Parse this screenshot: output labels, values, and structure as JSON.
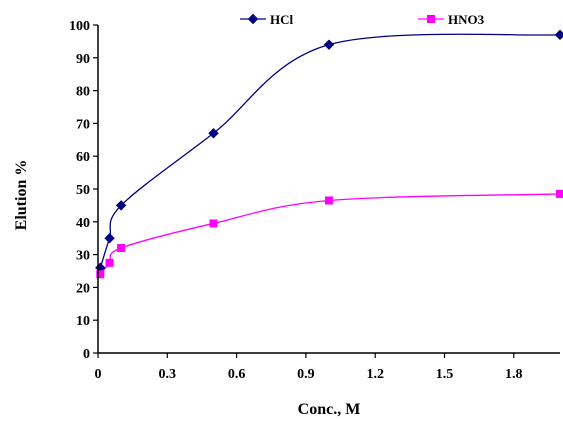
{
  "chart_data": {
    "type": "line",
    "title": "",
    "xlabel": "Conc., M",
    "ylabel": "Elution %",
    "xlim": [
      0,
      2.0
    ],
    "ylim": [
      0,
      100
    ],
    "x_ticks": [
      "0",
      "0.3",
      "0.6",
      "0.9",
      "1.2",
      "1.5",
      "1.8"
    ],
    "x_tick_values": [
      0,
      0.3,
      0.6,
      0.9,
      1.2,
      1.5,
      1.8
    ],
    "y_ticks": [
      "0",
      "10",
      "20",
      "30",
      "40",
      "50",
      "60",
      "70",
      "80",
      "90",
      "100"
    ],
    "y_tick_values": [
      0,
      10,
      20,
      30,
      40,
      50,
      60,
      70,
      80,
      90,
      100
    ],
    "grid": false,
    "smooth": true,
    "legend": "top",
    "series": [
      {
        "name": "HCl",
        "color": "#000080",
        "marker": "diamond",
        "x": [
          0.01,
          0.05,
          0.1,
          0.5,
          1.0,
          2.0
        ],
        "values": [
          26,
          35,
          45,
          67,
          94,
          97
        ]
      },
      {
        "name": "HNO3",
        "color": "#ff00ff",
        "marker": "square",
        "x": [
          0.01,
          0.05,
          0.1,
          0.5,
          1.0,
          2.0
        ],
        "values": [
          24,
          27.5,
          32,
          39.5,
          46.5,
          48.5
        ]
      }
    ]
  }
}
